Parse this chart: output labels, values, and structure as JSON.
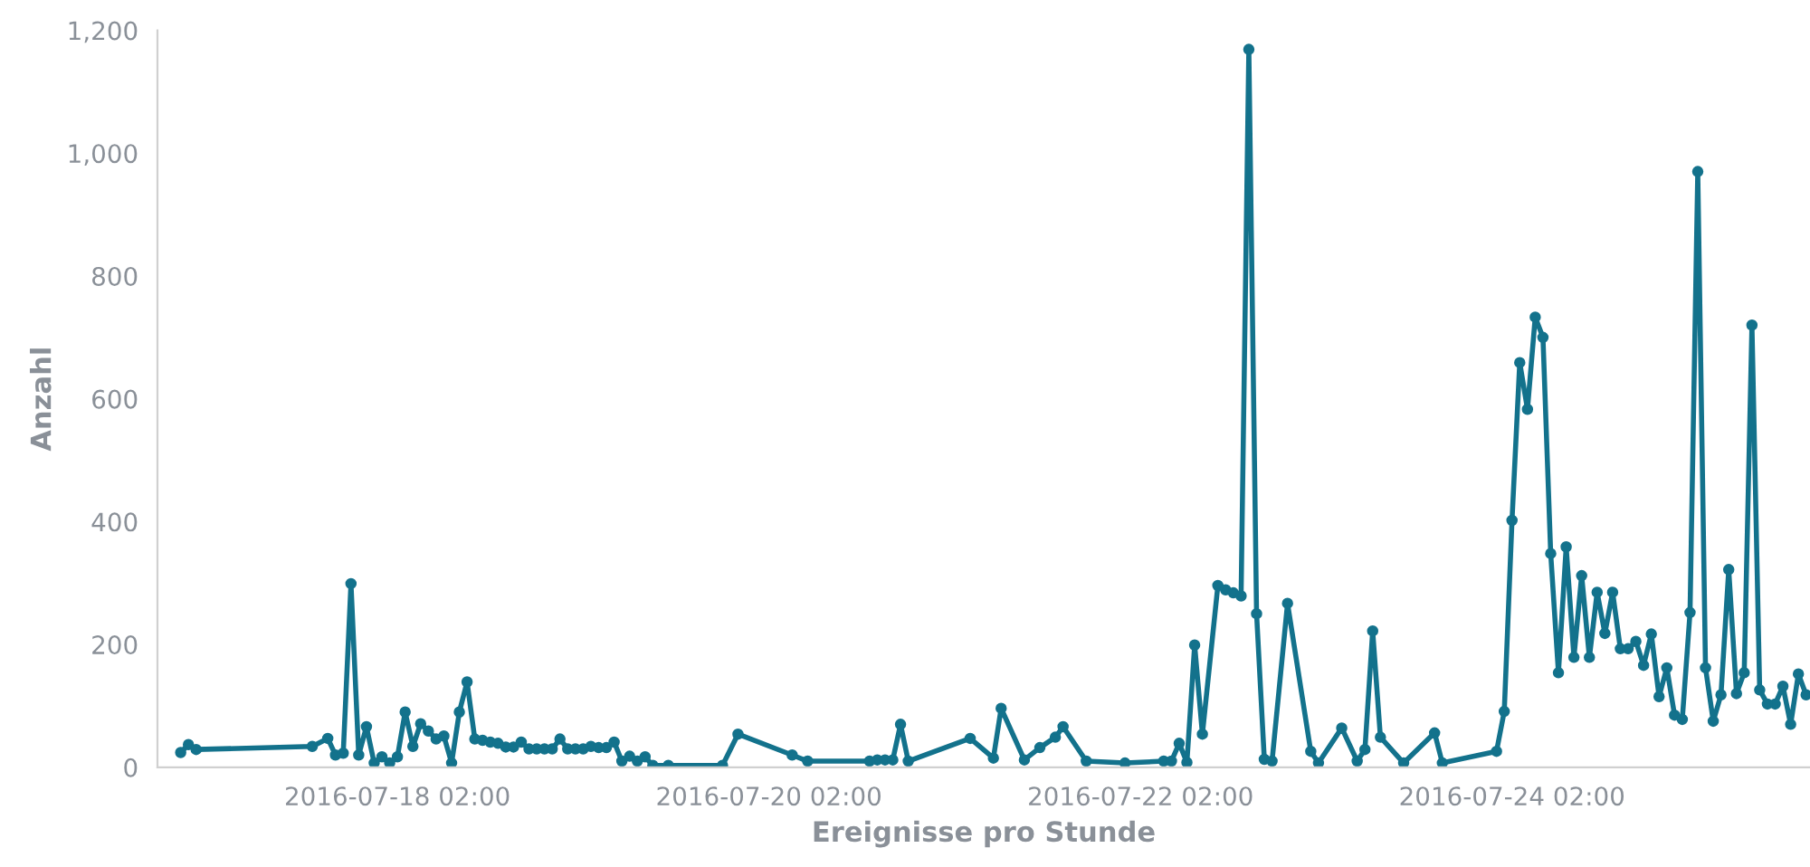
{
  "chart_data": {
    "type": "line",
    "xlabel": "Ereignisse pro Stunde",
    "ylabel": "Anzahl",
    "x": [
      "2016-07-16T22:00",
      "2016-07-16T23:00",
      "2016-07-17T00:00",
      "2016-07-17T15:00",
      "2016-07-17T17:00",
      "2016-07-17T18:00",
      "2016-07-17T19:00",
      "2016-07-17T20:00",
      "2016-07-17T21:00",
      "2016-07-17T22:00",
      "2016-07-17T23:00",
      "2016-07-18T00:00",
      "2016-07-18T01:00",
      "2016-07-18T02:00",
      "2016-07-18T03:00",
      "2016-07-18T04:00",
      "2016-07-18T05:00",
      "2016-07-18T06:00",
      "2016-07-18T07:00",
      "2016-07-18T08:00",
      "2016-07-18T09:00",
      "2016-07-18T10:00",
      "2016-07-18T11:00",
      "2016-07-18T12:00",
      "2016-07-18T13:00",
      "2016-07-18T14:00",
      "2016-07-18T15:00",
      "2016-07-18T16:00",
      "2016-07-18T17:00",
      "2016-07-18T18:00",
      "2016-07-18T19:00",
      "2016-07-18T20:00",
      "2016-07-18T21:00",
      "2016-07-18T22:00",
      "2016-07-18T23:00",
      "2016-07-19T00:00",
      "2016-07-19T01:00",
      "2016-07-19T02:00",
      "2016-07-19T03:00",
      "2016-07-19T04:00",
      "2016-07-19T05:00",
      "2016-07-19T06:00",
      "2016-07-19T07:00",
      "2016-07-19T08:00",
      "2016-07-19T09:00",
      "2016-07-19T10:00",
      "2016-07-19T11:00",
      "2016-07-19T13:00",
      "2016-07-19T20:00",
      "2016-07-19T22:00",
      "2016-07-20T05:00",
      "2016-07-20T07:00",
      "2016-07-20T15:00",
      "2016-07-20T16:00",
      "2016-07-20T17:00",
      "2016-07-20T18:00",
      "2016-07-20T19:00",
      "2016-07-20T20:00",
      "2016-07-21T04:00",
      "2016-07-21T07:00",
      "2016-07-21T08:00",
      "2016-07-21T11:00",
      "2016-07-21T13:00",
      "2016-07-21T15:00",
      "2016-07-21T16:00",
      "2016-07-21T19:00",
      "2016-07-22T00:00",
      "2016-07-22T05:00",
      "2016-07-22T06:00",
      "2016-07-22T07:00",
      "2016-07-22T08:00",
      "2016-07-22T09:00",
      "2016-07-22T10:00",
      "2016-07-22T12:00",
      "2016-07-22T13:00",
      "2016-07-22T14:00",
      "2016-07-22T15:00",
      "2016-07-22T16:00",
      "2016-07-22T17:00",
      "2016-07-22T18:00",
      "2016-07-22T19:00",
      "2016-07-22T21:00",
      "2016-07-23T00:00",
      "2016-07-23T01:00",
      "2016-07-23T04:00",
      "2016-07-23T06:00",
      "2016-07-23T07:00",
      "2016-07-23T08:00",
      "2016-07-23T09:00",
      "2016-07-23T12:00",
      "2016-07-23T16:00",
      "2016-07-23T17:00",
      "2016-07-24T00:00",
      "2016-07-24T01:00",
      "2016-07-24T02:00",
      "2016-07-24T03:00",
      "2016-07-24T04:00",
      "2016-07-24T05:00",
      "2016-07-24T06:00",
      "2016-07-24T07:00",
      "2016-07-24T08:00",
      "2016-07-24T09:00",
      "2016-07-24T10:00",
      "2016-07-24T11:00",
      "2016-07-24T12:00",
      "2016-07-24T13:00",
      "2016-07-24T14:00",
      "2016-07-24T15:00",
      "2016-07-24T16:00",
      "2016-07-24T17:00",
      "2016-07-24T18:00",
      "2016-07-24T19:00",
      "2016-07-24T20:00",
      "2016-07-24T21:00",
      "2016-07-24T22:00",
      "2016-07-24T23:00",
      "2016-07-25T00:00",
      "2016-07-25T01:00",
      "2016-07-25T02:00",
      "2016-07-25T03:00",
      "2016-07-25T04:00",
      "2016-07-25T05:00",
      "2016-07-25T06:00",
      "2016-07-25T07:00",
      "2016-07-25T08:00",
      "2016-07-25T09:00",
      "2016-07-25T10:00",
      "2016-07-25T11:00",
      "2016-07-25T12:00",
      "2016-07-25T13:00",
      "2016-07-25T14:00",
      "2016-07-25T15:00",
      "2016-07-25T16:00"
    ],
    "series": [
      {
        "color": "#13728c",
        "values": [
          24,
          37,
          29,
          34,
          47,
          20,
          23,
          299,
          20,
          66,
          7,
          17,
          7,
          17,
          90,
          34,
          71,
          59,
          46,
          51,
          7,
          90,
          139,
          46,
          44,
          41,
          39,
          33,
          33,
          41,
          30,
          30,
          30,
          30,
          46,
          30,
          30,
          30,
          34,
          32,
          32,
          41,
          10,
          18,
          10,
          17,
          3,
          3,
          3,
          54,
          20,
          10,
          10,
          12,
          12,
          12,
          70,
          10,
          47,
          15,
          96,
          12,
          32,
          49,
          66,
          10,
          7,
          10,
          10,
          39,
          8,
          199,
          54,
          296,
          289,
          284,
          279,
          1169,
          250,
          13,
          10,
          267,
          26,
          7,
          64,
          10,
          29,
          222,
          49,
          7,
          56,
          7,
          26,
          91,
          402,
          659,
          583,
          733,
          700,
          348,
          154,
          359,
          179,
          312,
          179,
          285,
          218,
          285,
          193,
          193,
          205,
          166,
          217,
          115,
          162,
          85,
          78,
          252,
          970,
          162,
          75,
          118,
          322,
          120,
          154,
          720,
          126,
          103,
          103,
          132,
          70,
          152,
          118
        ]
      }
    ],
    "xlim": [
      "2016-07-16T19:00",
      "2016-07-25T16:30"
    ],
    "xticks": [
      {
        "value": "2016-07-18T02:00",
        "label": "2016-07-18 02:00"
      },
      {
        "value": "2016-07-20T02:00",
        "label": "2016-07-20 02:00"
      },
      {
        "value": "2016-07-22T02:00",
        "label": "2016-07-22 02:00"
      },
      {
        "value": "2016-07-24T02:00",
        "label": "2016-07-24 02:00"
      }
    ],
    "ylim": [
      0,
      1200
    ],
    "yticks": [
      0,
      200,
      400,
      600,
      800,
      {
        "value": 1000,
        "label": "1,000"
      },
      {
        "value": 1200,
        "label": "1,200"
      }
    ],
    "marker": "circle",
    "line_style": "solid",
    "grid": false,
    "legend": false
  }
}
